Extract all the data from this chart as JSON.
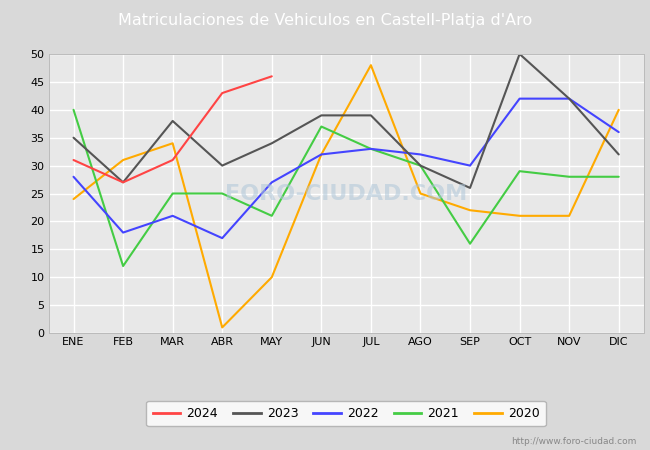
{
  "title": "Matriculaciones de Vehiculos en Castell-Platja d'Aro",
  "title_bg_color": "#4f81bd",
  "title_text_color": "#ffffff",
  "xlabel": "",
  "ylabel": "",
  "ylim": [
    0,
    50
  ],
  "yticks": [
    0,
    5,
    10,
    15,
    20,
    25,
    30,
    35,
    40,
    45,
    50
  ],
  "months": [
    "ENE",
    "FEB",
    "MAR",
    "ABR",
    "MAY",
    "JUN",
    "JUL",
    "AGO",
    "SEP",
    "OCT",
    "NOV",
    "DIC"
  ],
  "series": {
    "2024": {
      "color": "#ff4444",
      "data": [
        31,
        27,
        31,
        43,
        46,
        null,
        null,
        null,
        null,
        null,
        null,
        null
      ]
    },
    "2023": {
      "color": "#555555",
      "data": [
        35,
        27,
        38,
        30,
        34,
        39,
        39,
        30,
        26,
        50,
        42,
        32
      ]
    },
    "2022": {
      "color": "#4444ff",
      "data": [
        28,
        18,
        21,
        17,
        27,
        32,
        33,
        32,
        30,
        42,
        42,
        36
      ]
    },
    "2021": {
      "color": "#44cc44",
      "data": [
        40,
        12,
        25,
        25,
        21,
        37,
        33,
        30,
        16,
        29,
        28,
        28
      ]
    },
    "2020": {
      "color": "#ffaa00",
      "data": [
        24,
        31,
        34,
        1,
        10,
        32,
        48,
        25,
        22,
        21,
        21,
        40
      ]
    }
  },
  "watermark": "FORO-CIUDAD.COM",
  "url": "http://www.foro-ciudad.com",
  "fig_bg_color": "#d9d9d9",
  "plot_bg_color": "#e8e8e8",
  "grid_color": "#ffffff",
  "legend_entries": [
    "2024",
    "2023",
    "2022",
    "2021",
    "2020"
  ]
}
